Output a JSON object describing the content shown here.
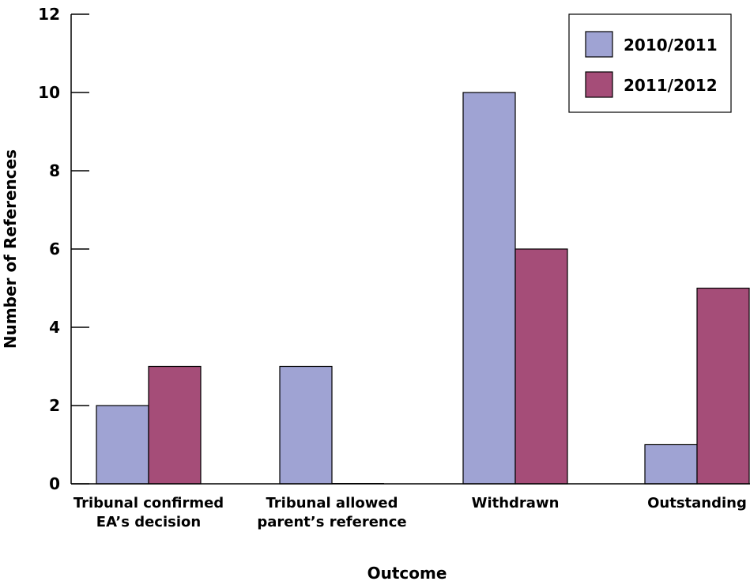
{
  "chart_data": {
    "type": "bar",
    "categories": [
      [
        "Tribunal confirmed",
        "EA’s decision"
      ],
      [
        "Tribunal allowed",
        "parent’s reference"
      ],
      [
        "Withdrawn"
      ],
      [
        "Outstanding"
      ]
    ],
    "series": [
      {
        "name": "2010/2011",
        "color": "#9fa3d3",
        "values": [
          2,
          3,
          10,
          1
        ]
      },
      {
        "name": "2011/2012",
        "color": "#a54d78",
        "values": [
          3,
          0,
          6,
          5
        ]
      }
    ],
    "xlabel": "Outcome",
    "ylabel": "Number of References",
    "ylim": [
      0,
      12
    ],
    "yticks": [
      "0",
      "2",
      "4",
      "6",
      "8",
      "10",
      "12"
    ],
    "grid": false,
    "legend_position": "top-right"
  }
}
